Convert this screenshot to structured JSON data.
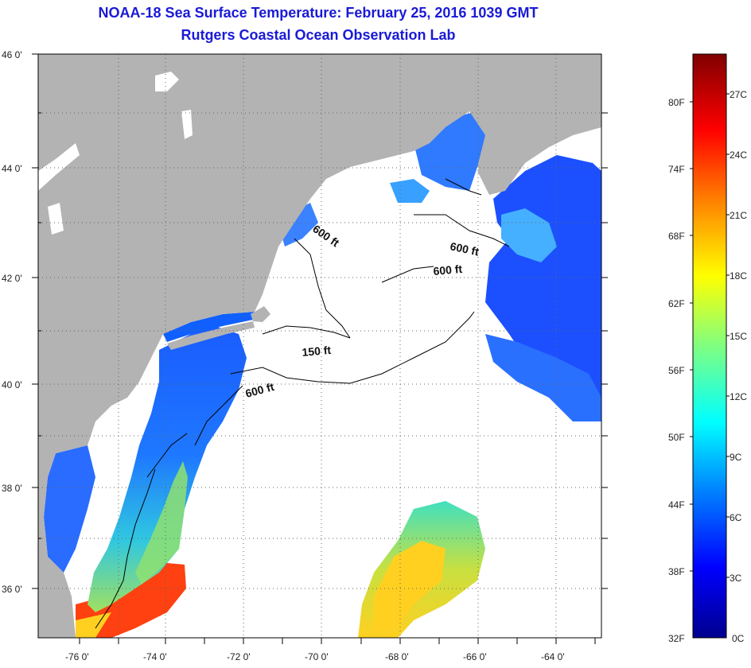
{
  "title": {
    "line1": "NOAA-18 Sea Surface Temperature:  February 25, 2016 1039 GMT",
    "line2": "Rutgers Coastal Ocean Observation Lab"
  },
  "map": {
    "lat_labels": [
      {
        "text": "46 0'",
        "lat": 46
      },
      {
        "text": "44 0'",
        "lat": 44
      },
      {
        "text": "42 0'",
        "lat": 42
      },
      {
        "text": "40 0'",
        "lat": 40
      },
      {
        "text": "38 0'",
        "lat": 38
      },
      {
        "text": "36 0'",
        "lat": 36
      }
    ],
    "lon_labels": [
      {
        "text": "-76 0'",
        "lon": -76
      },
      {
        "text": "-74 0'",
        "lon": -74
      },
      {
        "text": "-72 0'",
        "lon": -72
      },
      {
        "text": "-70 0'",
        "lon": -70
      },
      {
        "text": "-68 0'",
        "lon": -68
      },
      {
        "text": "-66 0'",
        "lon": -66
      },
      {
        "text": "-64 0'",
        "lon": -64
      }
    ],
    "contour_labels": [
      {
        "text": "600 ft"
      },
      {
        "text": "600 ft"
      },
      {
        "text": "600 ft"
      },
      {
        "text": "150 ft"
      },
      {
        "text": "600 ft"
      }
    ],
    "colors": {
      "land": "#b3b3b3",
      "cloud": "#ffffff",
      "frame": "#000000"
    }
  },
  "colorbar": {
    "fahrenheit_labels": [
      "80F",
      "74F",
      "68F",
      "62F",
      "56F",
      "50F",
      "44F",
      "38F",
      "32F"
    ],
    "celsius_labels": [
      "27C",
      "24C",
      "21C",
      "18C",
      "15C",
      "12C",
      "9C",
      "6C",
      "3C",
      "0C"
    ],
    "colors": [
      "#00008f",
      "#0000ff",
      "#0080ff",
      "#00ffff",
      "#80ff80",
      "#ffff00",
      "#ff8000",
      "#ff0000",
      "#800000"
    ]
  }
}
